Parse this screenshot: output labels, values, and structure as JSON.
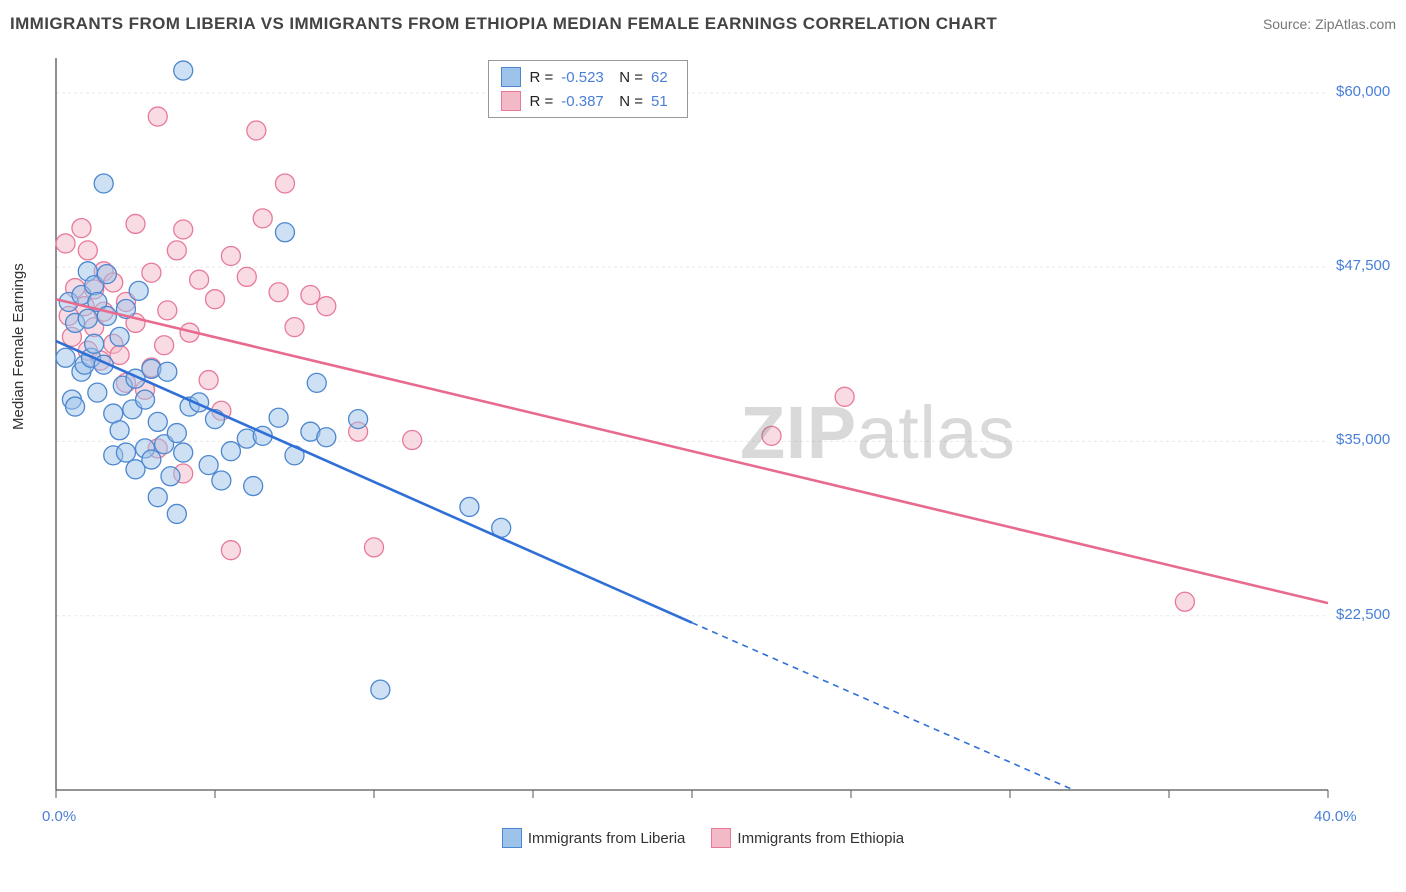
{
  "title": "IMMIGRANTS FROM LIBERIA VS IMMIGRANTS FROM ETHIOPIA MEDIAN FEMALE EARNINGS CORRELATION CHART",
  "source": "Source: ZipAtlas.com",
  "y_axis_label": "Median Female Earnings",
  "watermark": {
    "bold": "ZIP",
    "rest": "atlas"
  },
  "chart": {
    "type": "scatter-with-trend",
    "background_color": "#ffffff",
    "grid_color": "#e8e8e8",
    "grid_dash": "3 3",
    "axis_color": "#555555",
    "xlim": [
      0,
      40
    ],
    "ylim": [
      10000,
      62500
    ],
    "x_ticks": [
      0,
      5,
      10,
      15,
      20,
      25,
      30,
      35,
      40
    ],
    "x_tick_labels": {
      "0": "0.0%",
      "40": "40.0%"
    },
    "y_ticks": [
      22500,
      35000,
      47500,
      60000
    ],
    "y_tick_labels": {
      "22500": "$22,500",
      "35000": "$35,000",
      "47500": "$47,500",
      "60000": "$60,000"
    },
    "marker_radius": 9.5,
    "marker_opacity": 0.5,
    "trend_line_width": 2.6
  },
  "series": [
    {
      "key": "liberia",
      "label": "Immigrants from Liberia",
      "color_fill": "#9ec3ea",
      "color_stroke": "#4d87d0",
      "trend_color": "#2f6fd6",
      "R": "-0.523",
      "N": "62",
      "trend": {
        "x1": 0,
        "y1": 42200,
        "x2": 20,
        "y2": 22000,
        "x2_ext": 32,
        "y2_ext": 10000
      },
      "points": [
        [
          0.3,
          41000
        ],
        [
          0.4,
          45000
        ],
        [
          0.5,
          38000
        ],
        [
          0.6,
          43500
        ],
        [
          0.6,
          37500
        ],
        [
          0.8,
          40000
        ],
        [
          0.8,
          45500
        ],
        [
          0.9,
          40500
        ],
        [
          1.0,
          47200
        ],
        [
          1.0,
          43800
        ],
        [
          1.1,
          41000
        ],
        [
          1.2,
          46200
        ],
        [
          1.2,
          42000
        ],
        [
          1.3,
          38500
        ],
        [
          1.3,
          45000
        ],
        [
          1.5,
          53500
        ],
        [
          1.5,
          40500
        ],
        [
          1.6,
          44000
        ],
        [
          1.6,
          47000
        ],
        [
          1.8,
          34000
        ],
        [
          1.8,
          37000
        ],
        [
          2.0,
          35800
        ],
        [
          2.0,
          42500
        ],
        [
          2.1,
          39000
        ],
        [
          2.2,
          44500
        ],
        [
          2.2,
          34200
        ],
        [
          2.4,
          37300
        ],
        [
          2.5,
          33000
        ],
        [
          2.5,
          39500
        ],
        [
          2.6,
          45800
        ],
        [
          2.8,
          34500
        ],
        [
          2.8,
          38000
        ],
        [
          3.0,
          33700
        ],
        [
          3.0,
          40200
        ],
        [
          3.2,
          36400
        ],
        [
          3.2,
          31000
        ],
        [
          3.4,
          34800
        ],
        [
          3.5,
          40000
        ],
        [
          3.6,
          32500
        ],
        [
          3.8,
          35600
        ],
        [
          3.8,
          29800
        ],
        [
          4.0,
          34200
        ],
        [
          4.0,
          61600
        ],
        [
          4.2,
          37500
        ],
        [
          4.5,
          37800
        ],
        [
          4.8,
          33300
        ],
        [
          5.0,
          36600
        ],
        [
          5.2,
          32200
        ],
        [
          5.5,
          34300
        ],
        [
          6.0,
          35200
        ],
        [
          6.2,
          31800
        ],
        [
          6.5,
          35400
        ],
        [
          7.0,
          36700
        ],
        [
          7.2,
          50000
        ],
        [
          7.5,
          34000
        ],
        [
          8.0,
          35700
        ],
        [
          8.2,
          39200
        ],
        [
          9.5,
          36600
        ],
        [
          10.2,
          17200
        ],
        [
          13.0,
          30300
        ],
        [
          14.0,
          28800
        ],
        [
          8.5,
          35300
        ]
      ]
    },
    {
      "key": "ethiopia",
      "label": "Immigrants from Ethiopia",
      "color_fill": "#f3b9c7",
      "color_stroke": "#e77a9b",
      "trend_color": "#e86b8f",
      "R": "-0.387",
      "N": "51",
      "trend": {
        "x1": 0,
        "y1": 45200,
        "x2": 40,
        "y2": 23400,
        "x2_ext": 40,
        "y2_ext": 23400
      },
      "points": [
        [
          0.3,
          49200
        ],
        [
          0.4,
          44000
        ],
        [
          0.5,
          42500
        ],
        [
          0.6,
          46000
        ],
        [
          0.8,
          50300
        ],
        [
          0.9,
          44700
        ],
        [
          1.0,
          41500
        ],
        [
          1.0,
          48700
        ],
        [
          1.2,
          43200
        ],
        [
          1.2,
          45900
        ],
        [
          1.4,
          40800
        ],
        [
          1.5,
          44300
        ],
        [
          1.5,
          47200
        ],
        [
          1.8,
          42000
        ],
        [
          1.8,
          46400
        ],
        [
          2.0,
          41200
        ],
        [
          2.2,
          45000
        ],
        [
          2.2,
          39200
        ],
        [
          2.5,
          50600
        ],
        [
          2.5,
          43500
        ],
        [
          2.8,
          38700
        ],
        [
          3.0,
          47100
        ],
        [
          3.0,
          40300
        ],
        [
          3.2,
          34500
        ],
        [
          3.2,
          58300
        ],
        [
          3.4,
          41900
        ],
        [
          3.5,
          44400
        ],
        [
          3.8,
          48700
        ],
        [
          4.0,
          50200
        ],
        [
          4.0,
          32700
        ],
        [
          4.2,
          42800
        ],
        [
          4.5,
          46600
        ],
        [
          4.8,
          39400
        ],
        [
          5.0,
          45200
        ],
        [
          5.2,
          37200
        ],
        [
          5.5,
          48300
        ],
        [
          5.5,
          27200
        ],
        [
          6.0,
          46800
        ],
        [
          6.3,
          57300
        ],
        [
          6.5,
          51000
        ],
        [
          7.0,
          45700
        ],
        [
          7.2,
          53500
        ],
        [
          7.5,
          43200
        ],
        [
          8.0,
          45500
        ],
        [
          8.5,
          44700
        ],
        [
          9.5,
          35700
        ],
        [
          10.0,
          27400
        ],
        [
          11.2,
          35100
        ],
        [
          22.5,
          35400
        ],
        [
          24.8,
          38200
        ],
        [
          35.5,
          23500
        ]
      ]
    }
  ],
  "legend_box": {
    "R_label": "R =",
    "N_label": "N ="
  },
  "legend_bottom": [
    {
      "series": "liberia"
    },
    {
      "series": "ethiopia"
    }
  ]
}
